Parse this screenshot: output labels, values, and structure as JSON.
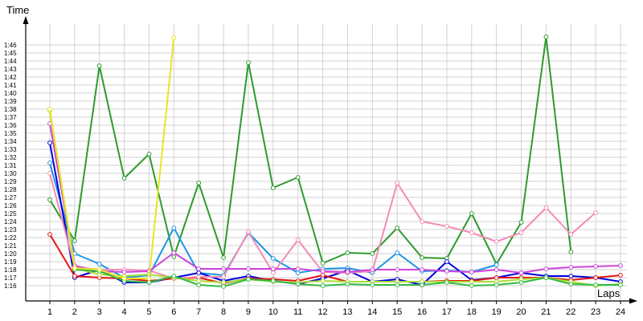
{
  "chart_data": {
    "type": "line",
    "title": "",
    "xlabel": "Laps",
    "ylabel": "Time",
    "x": [
      1,
      2,
      3,
      4,
      5,
      6,
      7,
      8,
      9,
      10,
      11,
      12,
      13,
      14,
      15,
      16,
      17,
      18,
      19,
      20,
      21,
      22,
      23,
      24
    ],
    "x_ticks": [
      "1",
      "2",
      "3",
      "4",
      "5",
      "6",
      "7",
      "8",
      "9",
      "10",
      "11",
      "12",
      "13",
      "14",
      "15",
      "16",
      "17",
      "18",
      "19",
      "20",
      "21",
      "22",
      "23",
      "24"
    ],
    "y_ticks": [
      "1:16",
      "1:17",
      "1:18",
      "1:19",
      "1:20",
      "1:21",
      "1:22",
      "1:23",
      "1:24",
      "1:25",
      "1:26",
      "1:27",
      "1:28",
      "1:29",
      "1:30",
      "1:31",
      "1:32",
      "1:33",
      "1:34",
      "1:35",
      "1:36",
      "1:37",
      "1:38",
      "1:39",
      "1:40",
      "1:41",
      "1:42",
      "1:43",
      "1:44",
      "1:45",
      "1:46"
    ],
    "y_unit": "seconds",
    "ylim": [
      75,
      107
    ],
    "grid": true,
    "series": [
      {
        "color": "#2e9a2e",
        "values": [
          86.7,
          81.6,
          103.4,
          89.4,
          92.4,
          79.6,
          88.8,
          79.5,
          103.8,
          88.2,
          89.5,
          78.8,
          80.1,
          80.0,
          83.2,
          79.5,
          79.4,
          85.0,
          78.7,
          83.9,
          107.0,
          80.2,
          null,
          null
        ]
      },
      {
        "color": "#1e96e6",
        "values": [
          91.3,
          80.0,
          78.7,
          77.0,
          77.3,
          83.2,
          77.6,
          77.3,
          82.6,
          79.4,
          77.6,
          78.1,
          78.2,
          77.6,
          80.1,
          77.8,
          77.9,
          77.7,
          78.6,
          null,
          null,
          null,
          null,
          null
        ]
      },
      {
        "color": "#0000dd",
        "values": [
          93.8,
          77.0,
          78.0,
          76.4,
          76.4,
          77.0,
          77.6,
          76.6,
          77.2,
          76.6,
          76.2,
          76.9,
          77.9,
          76.5,
          76.8,
          76.1,
          79.0,
          76.7,
          77.0,
          77.6,
          77.2,
          77.2,
          77.0,
          76.5
        ]
      },
      {
        "color": "#e61414",
        "values": [
          82.4,
          77.2,
          77.0,
          76.9,
          76.6,
          76.9,
          77.0,
          76.3,
          76.9,
          76.8,
          76.6,
          77.3,
          76.5,
          76.5,
          76.5,
          76.5,
          76.6,
          76.6,
          77.0,
          77.0,
          77.0,
          76.7,
          77.0,
          77.3
        ]
      },
      {
        "color": "#f28cb4",
        "values": [
          90.0,
          78.3,
          78.0,
          78.0,
          77.9,
          76.9,
          77.1,
          77.1,
          82.7,
          77.6,
          81.7,
          77.7,
          77.6,
          77.8,
          88.8,
          84.0,
          83.4,
          82.6,
          81.5,
          82.6,
          85.7,
          82.4,
          85.1,
          null
        ]
      },
      {
        "color": "#cc44dd",
        "values": [
          96.2,
          78.5,
          77.8,
          77.7,
          77.8,
          80.1,
          78.1,
          78.1,
          78.1,
          78.1,
          78.1,
          77.8,
          77.7,
          78.0,
          78.0,
          78.0,
          77.8,
          77.7,
          78.0,
          77.6,
          78.1,
          78.3,
          78.4,
          78.5
        ]
      },
      {
        "color": "#aadd33",
        "values": [
          97.8,
          78.2,
          77.4,
          77.2,
          77.4,
          77.0,
          76.6,
          76.4,
          76.8,
          76.5,
          76.4,
          76.6,
          76.5,
          76.5,
          76.5,
          76.5,
          76.5,
          76.5,
          76.5,
          76.8,
          77.0,
          76.5,
          76.0,
          76.2
        ]
      },
      {
        "color": "#33bb44",
        "values": [
          null,
          78.0,
          77.8,
          76.6,
          76.4,
          77.2,
          76.1,
          75.9,
          76.8,
          76.6,
          76.2,
          76.0,
          76.2,
          76.1,
          76.1,
          76.1,
          76.4,
          76.0,
          76.1,
          76.4,
          77.0,
          76.2,
          76.1,
          76.1
        ]
      },
      {
        "color": "#e6e620",
        "values": [
          98.0,
          78.2,
          78.0,
          76.9,
          76.9,
          106.9,
          null,
          null,
          null,
          null,
          null,
          null,
          null,
          null,
          null,
          null,
          null,
          null,
          null,
          null,
          null,
          null,
          null,
          null
        ]
      }
    ]
  }
}
